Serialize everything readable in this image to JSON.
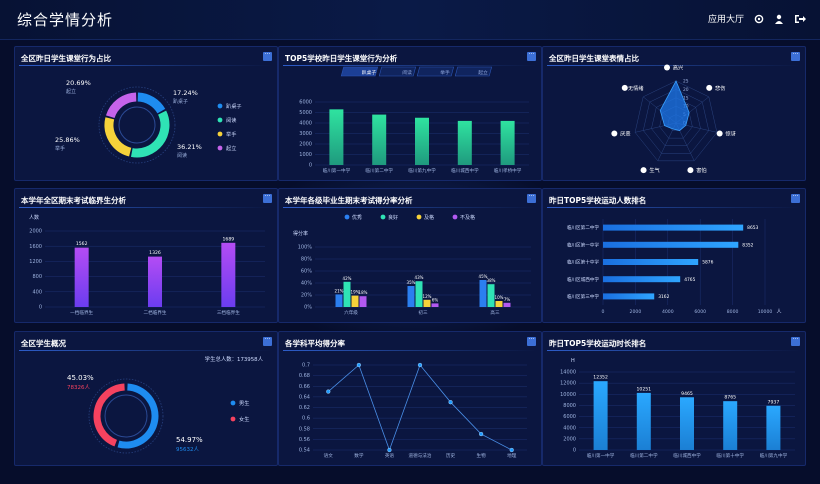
{
  "header": {
    "title": "综合学情分析",
    "app_hall": "应用大厅"
  },
  "more_label": "···",
  "panels": {
    "p1": {
      "title": "全区昨日学生课堂行为占比",
      "chart_data": {
        "type": "pie",
        "slices": [
          {
            "label": "趴桌子",
            "value": 17.24,
            "pct": "17.24%",
            "color": "#1e8cf0"
          },
          {
            "label": "阅读",
            "value": 36.21,
            "pct": "36.21%",
            "color": "#2fe3b5"
          },
          {
            "label": "举手",
            "value": 25.86,
            "pct": "25.86%",
            "color": "#f6d23a"
          },
          {
            "label": "起立",
            "value": 20.69,
            "pct": "20.69%",
            "color": "#c563ea"
          }
        ]
      }
    },
    "p2": {
      "title": "TOP5学校昨日学生课堂行为分析",
      "tabs": [
        "趴桌子",
        "阅读",
        "举手",
        "起立"
      ],
      "chart_data": {
        "type": "bar",
        "categories": [
          "临川第一中学",
          "临川第二中学",
          "临川第九中学",
          "临川城西中学",
          "临川孝桥中学"
        ],
        "values": [
          5300,
          4800,
          4500,
          4200,
          4200
        ],
        "ylim": [
          0,
          6000
        ],
        "yticks": [
          0,
          1000,
          2000,
          3000,
          4000,
          5000,
          6000
        ]
      }
    },
    "p3": {
      "title": "全区昨日学生课堂表情占比",
      "chart_data": {
        "type": "radar",
        "axes": [
          "高兴",
          "悲伤",
          "惊讶",
          "害怕",
          "生气",
          "厌恶",
          "无情绪"
        ],
        "values": [
          25,
          10,
          6,
          5,
          4,
          7,
          12
        ],
        "rticks": [
          0,
          5,
          10,
          15,
          20,
          25
        ]
      }
    },
    "p4": {
      "title": "本学年全区期末考试临界生分析",
      "ylabel": "人数",
      "chart_data": {
        "type": "bar",
        "categories": [
          "一档临界生",
          "二档临界生",
          "三档临界生"
        ],
        "values": [
          1562,
          1326,
          1689
        ],
        "ylim": [
          0,
          2000
        ],
        "yticks": [
          0,
          400,
          800,
          1200,
          1600,
          2000
        ]
      }
    },
    "p5": {
      "title": "本学年各级毕业生期末考试得分率分析",
      "ylabel": "得分率",
      "chart_data": {
        "type": "bar",
        "categories": [
          "六年级",
          "初三",
          "高三"
        ],
        "series": [
          {
            "name": "优秀",
            "color": "#2b7ff0",
            "values": [
              21,
              35,
              45
            ]
          },
          {
            "name": "良好",
            "color": "#2fe3b5",
            "values": [
              42,
              43,
              38
            ]
          },
          {
            "name": "及格",
            "color": "#f6d23a",
            "values": [
              19,
              12,
              10
            ]
          },
          {
            "name": "不及格",
            "color": "#b259f0",
            "values": [
              18,
              6,
              7
            ]
          }
        ],
        "ylim": [
          0,
          100
        ],
        "yticks": [
          "0%",
          "20%",
          "40%",
          "60%",
          "80%",
          "100%"
        ]
      }
    },
    "p6": {
      "title": "昨日TOP5学校运动人数排名",
      "unit": "人",
      "chart_data": {
        "type": "hbar",
        "categories": [
          "临川区第二中学",
          "临川区第一中学",
          "临川区第十中学",
          "临川区城西中学",
          "临川区第三中学"
        ],
        "values": [
          8653,
          8352,
          5876,
          4765,
          3162
        ],
        "xlim": [
          0,
          10000
        ],
        "xticks": [
          0,
          2000,
          4000,
          6000,
          8000,
          10000
        ]
      }
    },
    "p7": {
      "title": "全区学生概况",
      "total_label": "学生总人数：",
      "total": "173958人",
      "male_pct": "54.97%",
      "male_count": "95632人",
      "female_pct": "45.03%",
      "female_count": "78326人",
      "legend": [
        "男生",
        "女生"
      ],
      "chart_data": {
        "type": "pie",
        "slices": [
          {
            "label": "男生",
            "value": 54.97,
            "color": "#1e8cf0"
          },
          {
            "label": "女生",
            "value": 45.03,
            "color": "#f5425f"
          }
        ]
      }
    },
    "p8": {
      "title": "各学科平均得分率",
      "chart_data": {
        "type": "line",
        "categories": [
          "语文",
          "数学",
          "英语",
          "道德与法治",
          "历史",
          "生物",
          "地理"
        ],
        "values": [
          0.65,
          0.7,
          0.54,
          0.7,
          0.63,
          0.57,
          0.54
        ],
        "ylim": [
          0.54,
          0.7
        ],
        "yticks": [
          "0.54",
          "0.56",
          "0.58",
          "0.6",
          "0.62",
          "0.64",
          "0.66",
          "0.68",
          "0.7"
        ]
      }
    },
    "p9": {
      "title": "昨日TOP5学校运动时长排名",
      "ylabel": "H",
      "chart_data": {
        "type": "bar",
        "categories": [
          "临川第一中学",
          "临川第二中学",
          "临川城西中学",
          "临川第十中学",
          "临川第九中学"
        ],
        "values": [
          12352,
          10251,
          9465,
          8765,
          7937
        ],
        "ylim": [
          0,
          14000
        ],
        "yticks": [
          0,
          2000,
          4000,
          6000,
          8000,
          10000,
          12000,
          14000
        ]
      }
    }
  }
}
